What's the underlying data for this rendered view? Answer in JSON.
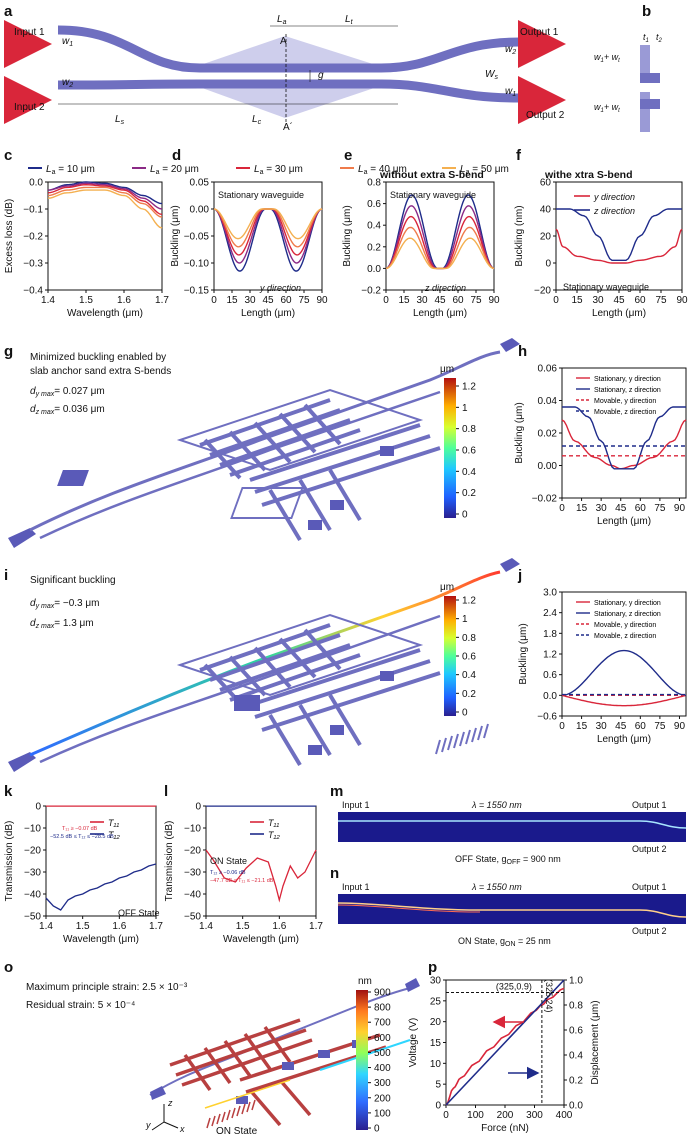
{
  "colors": {
    "red": "#d9263a",
    "blue": "#1f2c8a",
    "wg": "#6f6fc0",
    "slab": "#c9c9ea"
  },
  "panels": {
    "a": {
      "label": "a",
      "input1": "Input 1",
      "input2": "Input 2",
      "output1": "Output 1",
      "output2": "Output 2",
      "w1": "w",
      "w2": "w",
      "ws": "W",
      "La": "L",
      "Lt": "L",
      "Ls": "L",
      "Lc": "L",
      "g": "g",
      "A": "A",
      "Ap": "A´",
      "sub1": "1",
      "sub2": "2",
      "subs": "s",
      "suba": "a",
      "subt": "t",
      "subc": "c"
    },
    "b": {
      "label": "b",
      "t1": "t",
      "t2": "t",
      "w1wt": "w",
      "plus": "+ w",
      "sub1": "1",
      "sub2": "2",
      "subt": "t"
    },
    "c": {
      "label": "c"
    },
    "d": {
      "label": "d",
      "note1": "Stationary waveguide",
      "note2": "y direction"
    },
    "e": {
      "label": "e",
      "title": "without extra S-bend",
      "note1": "Stationary waveguide",
      "note2": "z direction"
    },
    "f": {
      "label": "f",
      "title": "withe xtra S-bend",
      "note1": "Stationary waveguide"
    },
    "g": {
      "label": "g",
      "line1": "Minimized buckling enabled by",
      "line2": "slab anchor sand extra S-bends",
      "dy": "d",
      "dz": "d",
      "dyv": "= 0.027 μm",
      "dzv": "= 0.036 μm",
      "suby": "y max",
      "subz": "z max",
      "unit": "μm"
    },
    "h": {
      "label": "h"
    },
    "i": {
      "label": "i",
      "line1": "Significant buckling",
      "dy": "d",
      "dz": "d",
      "dyv": "= −0.3 μm",
      "dzv": "= 1.3 μm",
      "suby": "y max",
      "subz": "z max",
      "unit": "μm"
    },
    "j": {
      "label": "j"
    },
    "k": {
      "label": "k",
      "state": "OFF State",
      "ann1": "T₁₁ ≥ −0.07 dB",
      "ann2": "−52.5 dB ≤ T₁₂ ≤ −28.5 dB"
    },
    "l": {
      "label": "l",
      "state": "ON State",
      "ann1": "T₁₂ ≥ −0.06 dB",
      "ann2": "−47.7 dB ≤ T₁₁ ≤ −21.1 dB"
    },
    "m": {
      "label": "m",
      "in1": "Input 1",
      "out1": "Output 1",
      "out2": "Output 2",
      "lambda": "λ = 1550 nm",
      "caption": "OFF State, g",
      "capsub": "OFF",
      "capval": " = 900 nm"
    },
    "n": {
      "label": "n",
      "in1": "Input 1",
      "out1": "Output 1",
      "out2": "Output 2",
      "lambda": "λ = 1550 nm",
      "caption": "ON State, g",
      "capsub": "ON",
      "capval": " = 25 nm"
    },
    "o": {
      "label": "o",
      "line1": "Maximum principle strain: 2.5 × 10⁻³",
      "line2": "Residual strain: 5 × 10⁻⁴",
      "unit": "nm",
      "state": "ON State",
      "ax_y": "y",
      "ax_z": "z",
      "ax_x": "x"
    },
    "p": {
      "label": "p",
      "ann1": "(325,0.9)",
      "ann2": "(325,24)"
    }
  },
  "colorbar_gi": {
    "ticks": [
      "1.2",
      "1",
      "0.8",
      "0.6",
      "0.4",
      "0.2",
      "0"
    ]
  },
  "colorbar_o": {
    "ticks": [
      "900",
      "800",
      "700",
      "600",
      "500",
      "400",
      "300",
      "200",
      "100",
      "0"
    ]
  },
  "chart_data": [
    {
      "id": "c",
      "type": "line",
      "xlabel": "Wavelength (μm)",
      "ylabel": "Excess loss (dB)",
      "xlim": [
        1.4,
        1.7
      ],
      "ylim": [
        -0.4,
        0.0
      ],
      "xticks": [
        "1.4",
        "1.5",
        "1.6",
        "1.7"
      ],
      "yticks": [
        "0.0",
        "−0.1",
        "−0.2",
        "−0.3",
        "−0.4"
      ],
      "legend": [
        "L",
        "L",
        "L",
        "L",
        "L"
      ],
      "legend_vals": [
        "= 10 μm",
        "= 20 μm",
        "= 30 μm",
        "= 40 μm",
        "= 50 μm"
      ],
      "legend_sub": "a",
      "x": [
        1.4,
        1.45,
        1.5,
        1.55,
        1.6,
        1.65,
        1.7
      ],
      "series": [
        {
          "color": "#1f2c8a",
          "values": [
            -0.03,
            -0.01,
            0.0,
            -0.005,
            -0.02,
            -0.05,
            -0.08
          ]
        },
        {
          "color": "#8b2a86",
          "values": [
            -0.03,
            -0.015,
            -0.005,
            -0.01,
            -0.025,
            -0.06,
            -0.1
          ]
        },
        {
          "color": "#d9263a",
          "values": [
            -0.04,
            -0.02,
            -0.01,
            -0.015,
            -0.03,
            -0.07,
            -0.12
          ]
        },
        {
          "color": "#ef7b4b",
          "values": [
            -0.05,
            -0.03,
            -0.02,
            -0.02,
            -0.04,
            -0.08,
            -0.13
          ]
        },
        {
          "color": "#f4b050",
          "values": [
            -0.06,
            -0.04,
            -0.03,
            -0.03,
            -0.05,
            -0.1,
            -0.17
          ]
        }
      ]
    },
    {
      "id": "d",
      "type": "line",
      "xlabel": "Length (μm)",
      "ylabel": "Buckling (μm)",
      "xlim": [
        0,
        90
      ],
      "ylim": [
        -0.15,
        0.05
      ],
      "xticks": [
        "0",
        "15",
        "30",
        "45",
        "60",
        "75",
        "90"
      ],
      "yticks": [
        "0.05",
        "0.00",
        "−0.05",
        "−0.10",
        "−0.15"
      ],
      "amps": [
        -0.115,
        -0.1,
        -0.085,
        -0.07,
        -0.055
      ],
      "colors": [
        "#1f2c8a",
        "#8b2a86",
        "#d9263a",
        "#ef7b4b",
        "#f4b050"
      ]
    },
    {
      "id": "e",
      "type": "line",
      "xlabel": "Length (μm)",
      "ylabel": "Buckling (μm)",
      "xlim": [
        0,
        90
      ],
      "ylim": [
        -0.2,
        0.8
      ],
      "xticks": [
        "0",
        "15",
        "30",
        "45",
        "60",
        "75",
        "90"
      ],
      "yticks": [
        "0.8",
        "0.6",
        "0.4",
        "0.2",
        "0.0",
        "−0.2"
      ],
      "amps": [
        0.68,
        0.58,
        0.48,
        0.38,
        0.28
      ],
      "colors": [
        "#1f2c8a",
        "#8b2a86",
        "#d9263a",
        "#ef7b4b",
        "#f4b050"
      ]
    },
    {
      "id": "f",
      "type": "line",
      "xlabel": "Length (μm)",
      "ylabel": "Buckling (nm)",
      "xlim": [
        0,
        90
      ],
      "ylim": [
        -20,
        60
      ],
      "xticks": [
        "0",
        "15",
        "30",
        "45",
        "60",
        "75",
        "90"
      ],
      "yticks": [
        "60",
        "40",
        "20",
        "0",
        "−20"
      ],
      "legend": [
        "y direction",
        "z direction"
      ],
      "series": [
        {
          "color": "#d9263a",
          "x": [
            0,
            5,
            15,
            30,
            40,
            50,
            60,
            75,
            85,
            90
          ],
          "y": [
            25,
            12,
            5,
            2,
            0,
            0,
            2,
            5,
            12,
            25
          ]
        },
        {
          "color": "#1f2c8a",
          "x": [
            0,
            10,
            20,
            30,
            40,
            50,
            60,
            70,
            80,
            90
          ],
          "y": [
            40,
            40,
            35,
            20,
            2,
            2,
            20,
            35,
            40,
            40
          ]
        }
      ]
    },
    {
      "id": "h",
      "type": "line",
      "xlabel": "Length (μm)",
      "ylabel": "Buckling (μm)",
      "xlim": [
        0,
        95
      ],
      "ylim": [
        -0.02,
        0.06
      ],
      "xticks": [
        "0",
        "15",
        "30",
        "45",
        "60",
        "75",
        "90"
      ],
      "yticks": [
        "0.06",
        "0.04",
        "0.02",
        "0.00",
        "−0.02"
      ],
      "legend": [
        "Stationary, y direction",
        "Stationary, z direction",
        "Movable, y direction",
        "Movable, z direction"
      ],
      "series": [
        {
          "color": "#d9263a",
          "dash": false,
          "x": [
            0,
            10,
            25,
            38,
            45,
            55,
            70,
            85,
            95
          ],
          "y": [
            0.028,
            0.015,
            0.005,
            0,
            -0.002,
            0,
            0.005,
            0.015,
            0.028
          ]
        },
        {
          "color": "#1f2c8a",
          "dash": false,
          "x": [
            0,
            10,
            20,
            30,
            40,
            55,
            65,
            75,
            85,
            95
          ],
          "y": [
            0.036,
            0.036,
            0.03,
            0.015,
            -0.002,
            -0.002,
            0.015,
            0.03,
            0.036,
            0.036
          ]
        },
        {
          "color": "#d9263a",
          "dash": true,
          "x": [
            0,
            95
          ],
          "y": [
            0.006,
            0.006
          ]
        },
        {
          "color": "#1f2c8a",
          "dash": true,
          "x": [
            0,
            95
          ],
          "y": [
            0.012,
            0.012
          ]
        }
      ]
    },
    {
      "id": "j",
      "type": "line",
      "xlabel": "Length (μm)",
      "ylabel": "Buckling (μm)",
      "xlim": [
        0,
        95
      ],
      "ylim": [
        -0.6,
        3.0
      ],
      "xticks": [
        "0",
        "15",
        "30",
        "45",
        "60",
        "75",
        "90"
      ],
      "yticks": [
        "3.0",
        "2.4",
        "1.8",
        "1.2",
        "0.6",
        "0.0",
        "−0.6"
      ],
      "legend": [
        "Stationary, y direction",
        "Stationary, z direction",
        "Movable, y direction",
        "Movable, z direction"
      ],
      "z_peak": 1.3,
      "y_min": -0.3
    },
    {
      "id": "k",
      "type": "line",
      "xlabel": "Wavelength (μm)",
      "ylabel": "Transmission (dB)",
      "xlim": [
        1.4,
        1.7
      ],
      "ylim": [
        -55,
        0
      ],
      "xticks": [
        "1.4",
        "1.5",
        "1.6",
        "1.7"
      ],
      "yticks": [
        "0",
        "−10",
        "−20",
        "−30",
        "−40",
        "−50"
      ],
      "legend": [
        "T₁₁",
        "T₁₂"
      ],
      "series": [
        {
          "color": "#d9263a",
          "x": [
            1.4,
            1.7
          ],
          "y": [
            -0.07,
            -0.07
          ]
        },
        {
          "color": "#1f2c8a",
          "x": [
            1.4,
            1.42,
            1.44,
            1.46,
            1.48,
            1.5,
            1.52,
            1.54,
            1.56,
            1.58,
            1.6,
            1.62,
            1.64,
            1.66,
            1.68,
            1.7
          ],
          "y": [
            -46,
            -50,
            -52,
            -47,
            -45,
            -44,
            -42,
            -41,
            -39,
            -38,
            -36,
            -35,
            -33,
            -32,
            -30,
            -29
          ]
        }
      ]
    },
    {
      "id": "l",
      "type": "line",
      "xlabel": "Wavelength (μm)",
      "ylabel": "Transmission (dB)",
      "xlim": [
        1.4,
        1.7
      ],
      "ylim": [
        -55,
        0
      ],
      "xticks": [
        "1.4",
        "1.5",
        "1.6",
        "1.7"
      ],
      "yticks": [
        "0",
        "−10",
        "−20",
        "−30",
        "−40",
        "−50"
      ],
      "legend": [
        "T₁₁",
        "T₁₂"
      ],
      "series": [
        {
          "color": "#1f2c8a",
          "x": [
            1.4,
            1.7
          ],
          "y": [
            -0.06,
            -0.06
          ]
        },
        {
          "color": "#d9263a",
          "x": [
            1.4,
            1.42,
            1.45,
            1.48,
            1.51,
            1.54,
            1.57,
            1.59,
            1.6,
            1.61,
            1.63,
            1.65,
            1.67,
            1.7
          ],
          "y": [
            -22,
            -27,
            -36,
            -38,
            -31,
            -26,
            -28,
            -40,
            -47,
            -40,
            -30,
            -36,
            -33,
            -22
          ]
        }
      ]
    },
    {
      "id": "p",
      "type": "line",
      "xlabel": "Force (nN)",
      "ylabel": "Voltage (V)",
      "ylabel2": "Displacement (μm)",
      "xlim": [
        0,
        400
      ],
      "ylim": [
        0,
        30
      ],
      "ylim2": [
        0,
        1.0
      ],
      "xticks": [
        "0",
        "100",
        "200",
        "300",
        "400"
      ],
      "yticks": [
        "30",
        "25",
        "20",
        "15",
        "10",
        "5",
        "0"
      ],
      "yticks2": [
        "1.0",
        "0.8",
        "0.6",
        "0.4",
        "0.2",
        "0.0"
      ],
      "series": [
        {
          "name": "Voltage",
          "color": "#d9263a",
          "x": [
            0,
            25,
            50,
            100,
            150,
            200,
            250,
            300,
            325,
            350,
            400
          ],
          "y": [
            0,
            4,
            6.5,
            10,
            13.5,
            16.5,
            19.5,
            22.5,
            24,
            25.5,
            28
          ]
        },
        {
          "name": "Displacement",
          "color": "#1f2c8a",
          "x": [
            0,
            400
          ],
          "y": [
            0,
            1.1
          ]
        }
      ]
    }
  ]
}
